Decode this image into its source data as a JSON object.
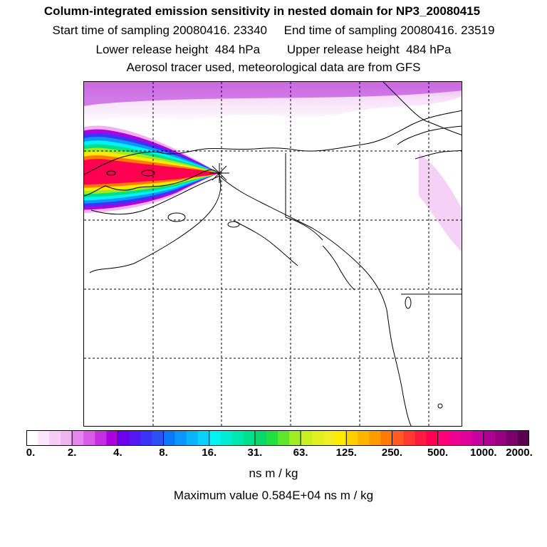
{
  "header": {
    "title": "Column-integrated emission sensitivity in nested domain for NP3_20080415",
    "sampling_line": "Start time of sampling 20080416. 23340     End time of sampling 20080416. 23519",
    "release_line": "Lower release height  484 hPa        Upper release height  484 hPa",
    "tracer_line": "Aerosol tracer used, meteorological data are from GFS"
  },
  "colorbar": {
    "tick_labels": [
      "0.",
      "2.",
      "4.",
      "8.",
      "16.",
      "31.",
      "63.",
      "125.",
      "250.",
      "500.",
      "1000.",
      "2000."
    ],
    "colors": [
      "#ffffff",
      "#fbe6fb",
      "#f6ccf6",
      "#f0b3f0",
      "#e486ee",
      "#d85ae8",
      "#c62ee4",
      "#ad00e0",
      "#6a00ee",
      "#5418f2",
      "#3c34f4",
      "#2a50f6",
      "#0a78f8",
      "#0a96fa",
      "#0ab4fb",
      "#0ad0fc",
      "#00f2f2",
      "#00ecd4",
      "#00e6b0",
      "#00e08c",
      "#0ad86a",
      "#20e040",
      "#60e628",
      "#a0ec20",
      "#c8f020",
      "#e0f020",
      "#f0ee20",
      "#ffea00",
      "#ffd000",
      "#ffb400",
      "#ff9a00",
      "#ff7a00",
      "#ff5a20",
      "#ff3a30",
      "#ff1a40",
      "#ff0050",
      "#ff0078",
      "#f00090",
      "#e0009a",
      "#c800a0",
      "#b00090",
      "#980080",
      "#7c006c",
      "#5a0050"
    ],
    "units": "ns m / kg"
  },
  "footer": {
    "max_value": "Maximum value  0.584E+04 ns m / kg"
  },
  "map": {
    "release_marker": "release-point-marker",
    "plume_colors": [
      "#ff0050",
      "#ff7a00",
      "#ffea00",
      "#a0ec20",
      "#00e08c",
      "#00f2f2",
      "#0a96fa",
      "#3c34f4",
      "#ad00e0",
      "#f0b3f0"
    ]
  }
}
